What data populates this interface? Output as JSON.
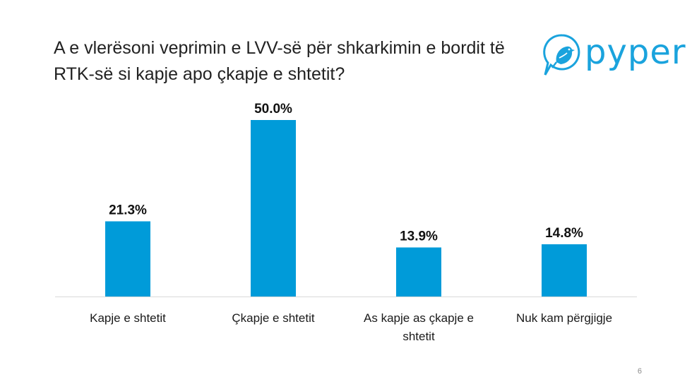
{
  "slide": {
    "title_lines": [
      "A e vlerësoni veprimin e LVV-së për shkarkimin e bordit të",
      "RTK-së si kapje apo çkapje e shtetit?"
    ],
    "page_number": "6"
  },
  "logo": {
    "text": "pyper",
    "icon": "bird-icon",
    "color": "#1aa3dd"
  },
  "chart_data": {
    "type": "bar",
    "title": "A e vlerësoni veprimin e LVV-së për shkarkimin e bordit të RTK-së si kapje apo çkapje e shtetit?",
    "categories": [
      "Kapje e shtetit",
      "Çkapje e shtetit",
      "As kapje as çkapje e shtetit",
      "Nuk kam përgjigje"
    ],
    "category_lines": [
      [
        "Kapje e shtetit"
      ],
      [
        "Çkapje e shtetit"
      ],
      [
        "As kapje as çkapje e",
        "shtetit"
      ],
      [
        "Nuk kam përgjigje"
      ]
    ],
    "values": [
      21.3,
      50.0,
      13.9,
      14.8
    ],
    "data_labels": [
      "21.3%",
      "50.0%",
      "13.9%",
      "14.8%"
    ],
    "ylim": [
      0,
      56
    ],
    "bar_color": "#009bd9",
    "grid": false,
    "legend": "none",
    "xlabel": "",
    "ylabel": ""
  }
}
